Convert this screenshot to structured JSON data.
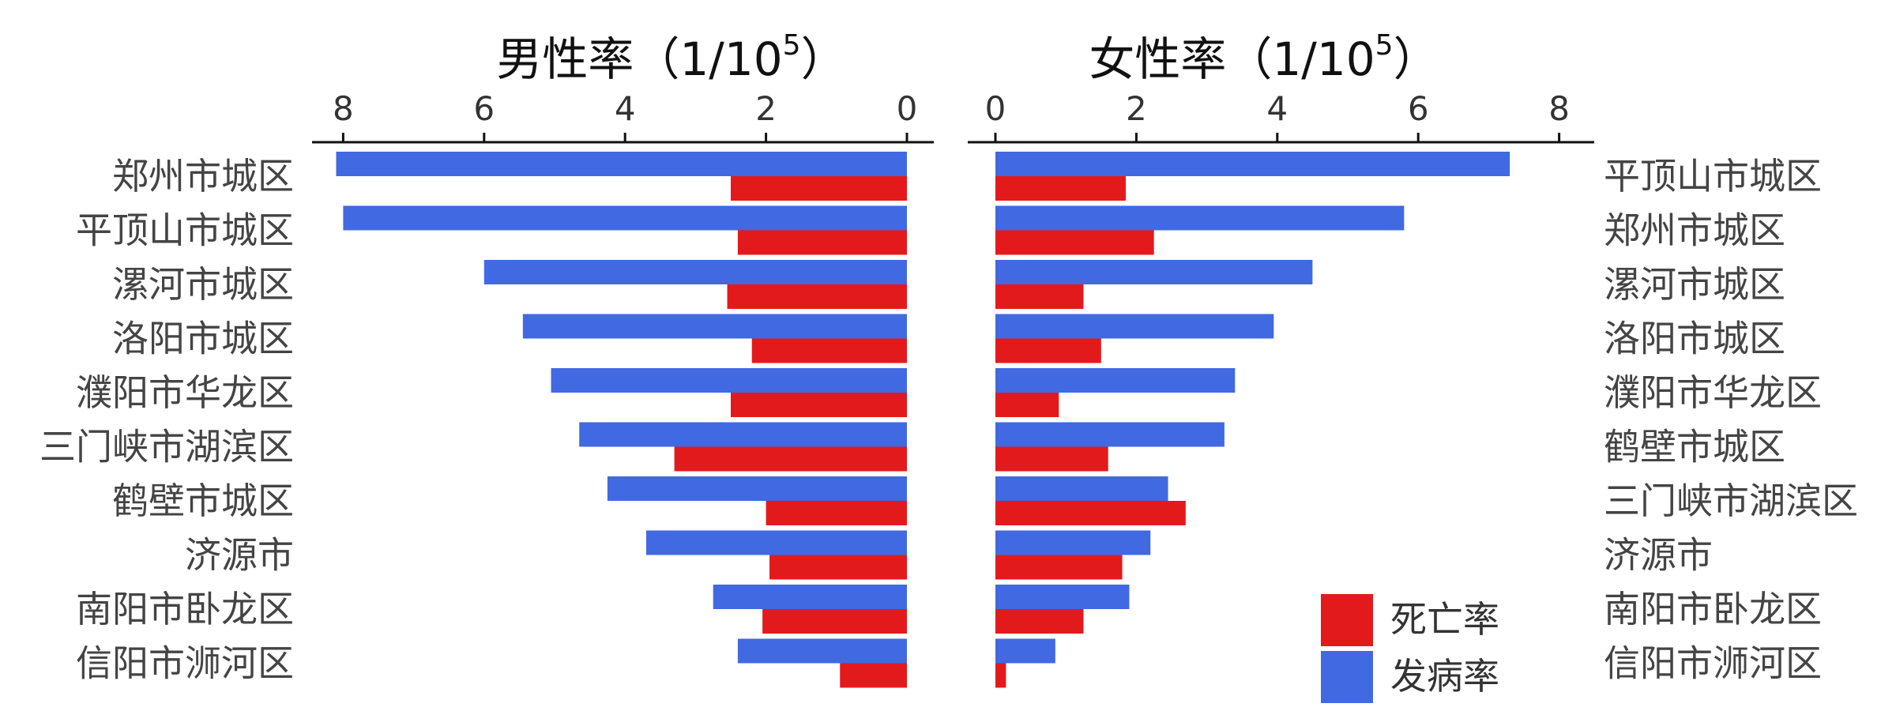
{
  "chart_data": [
    {
      "type": "bar",
      "orientation": "horizontal",
      "direction": "leftward",
      "title": "男性率（1/10⁵）",
      "title_main": "男性率（1/10",
      "title_sup": "5",
      "title_close": "）",
      "xlim": [
        0,
        8.5
      ],
      "ticks": [
        8,
        6,
        4,
        2,
        0
      ],
      "categories": [
        "郑州市城区",
        "平顶山市城区",
        "漯河市城区",
        "洛阳市城区",
        "濮阳市华龙区",
        "三门峡市湖滨区",
        "鹤壁市城区",
        "济源市",
        "南阳市卧龙区",
        "信阳市浉河区"
      ],
      "series": [
        {
          "name": "发病率",
          "color": "#4169E1",
          "values": [
            8.1,
            8.0,
            6.0,
            5.45,
            5.05,
            4.65,
            4.25,
            3.7,
            2.75,
            2.4
          ]
        },
        {
          "name": "死亡率",
          "color": "#E31A1C",
          "values": [
            2.5,
            2.4,
            2.55,
            2.2,
            2.5,
            3.3,
            2.0,
            1.95,
            2.05,
            0.95
          ]
        }
      ]
    },
    {
      "type": "bar",
      "orientation": "horizontal",
      "direction": "rightward",
      "title": "女性率（1/10⁵）",
      "title_main": "女性率（1/10",
      "title_sup": "5",
      "title_close": "）",
      "xlim": [
        0,
        8.5
      ],
      "ticks": [
        0,
        2,
        4,
        6,
        8
      ],
      "categories": [
        "平顶山市城区",
        "郑州市城区",
        "漯河市城区",
        "洛阳市城区",
        "濮阳市华龙区",
        "鹤壁市城区",
        "三门峡市湖滨区",
        "济源市",
        "南阳市卧龙区",
        "信阳市浉河区"
      ],
      "series": [
        {
          "name": "发病率",
          "color": "#4169E1",
          "values": [
            7.3,
            5.8,
            4.5,
            3.95,
            3.4,
            3.25,
            2.45,
            2.2,
            1.9,
            0.85
          ]
        },
        {
          "name": "死亡率",
          "color": "#E31A1C",
          "values": [
            1.85,
            2.25,
            1.25,
            1.5,
            0.9,
            1.6,
            2.7,
            1.8,
            1.25,
            0.15
          ]
        }
      ]
    }
  ],
  "legend": {
    "placement": "bottom-right",
    "items": [
      {
        "label": "死亡率",
        "color": "#E31A1C"
      },
      {
        "label": "发病率",
        "color": "#4169E1"
      }
    ]
  }
}
